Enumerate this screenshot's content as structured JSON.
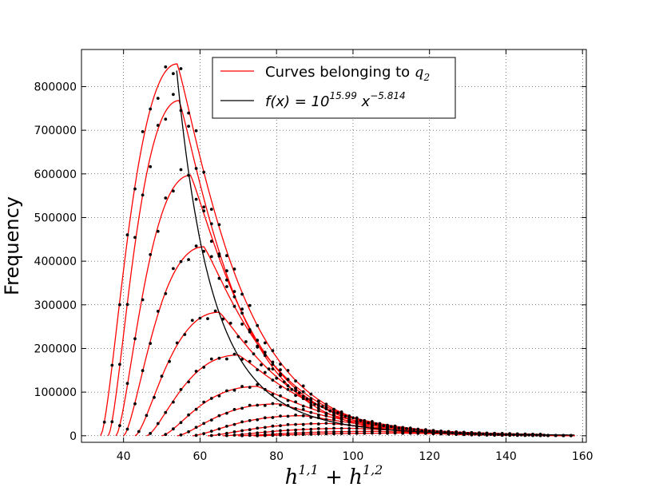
{
  "chart_data": {
    "type": "line",
    "xlabel": "h^{1,1} + h^{1,2}",
    "ylabel": "Frequency",
    "xlim": [
      29,
      161
    ],
    "ylim": [
      -15000,
      885000
    ],
    "xticks": [
      40,
      60,
      80,
      100,
      120,
      140,
      160
    ],
    "yticks": [
      0,
      100000,
      200000,
      300000,
      400000,
      500000,
      600000,
      700000,
      800000
    ],
    "grid": true,
    "legend_position": "top-center",
    "legend": [
      {
        "label_text": "Curves belonging to ",
        "label_math": "q",
        "label_sub": "2",
        "color": "#ff0000"
      },
      {
        "label_prefix": "f(x) = 10",
        "label_exp1": "15.99",
        "label_mid": " x",
        "label_exp2": "−5.814",
        "color": "#000000"
      }
    ],
    "curve_color": "#ff0000",
    "fit_color": "#000000",
    "point_color": "#000000",
    "series": [
      {
        "peak_x": 54,
        "peak_y": 852000,
        "start_x": 34,
        "end_x": 158
      },
      {
        "peak_x": 54.5,
        "peak_y": 768000,
        "start_x": 36,
        "end_x": 158
      },
      {
        "peak_x": 57.5,
        "peak_y": 597000,
        "start_x": 38,
        "end_x": 158
      },
      {
        "peak_x": 61,
        "peak_y": 433000,
        "start_x": 40,
        "end_x": 158
      },
      {
        "peak_x": 65,
        "peak_y": 283000,
        "start_x": 43,
        "end_x": 150
      },
      {
        "peak_x": 70,
        "peak_y": 185000,
        "start_x": 46,
        "end_x": 150
      },
      {
        "peak_x": 75,
        "peak_y": 113000,
        "start_x": 50,
        "end_x": 150
      },
      {
        "peak_x": 80.5,
        "peak_y": 73000,
        "start_x": 54,
        "end_x": 150
      },
      {
        "peak_x": 87,
        "peak_y": 46000,
        "start_x": 58,
        "end_x": 150
      },
      {
        "peak_x": 94,
        "peak_y": 28000,
        "start_x": 62,
        "end_x": 150
      },
      {
        "peak_x": 100,
        "peak_y": 17000,
        "start_x": 66,
        "end_x": 150
      },
      {
        "peak_x": 106,
        "peak_y": 10000,
        "start_x": 70,
        "end_x": 150
      },
      {
        "peak_x": 112,
        "peak_y": 6000,
        "start_x": 74,
        "end_x": 150
      }
    ],
    "fit": {
      "log10_a": 15.99,
      "b": -5.814,
      "x_start": 53.9,
      "x_end": 158
    }
  }
}
